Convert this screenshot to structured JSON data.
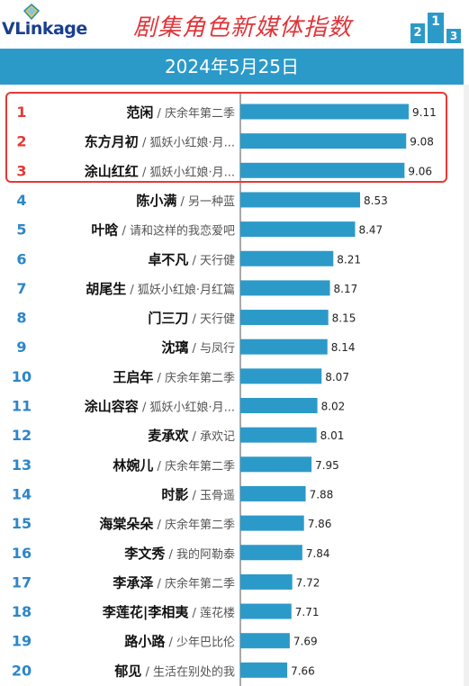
{
  "header": {
    "logo_text": "VLinkage",
    "title": "剧集角色新媒体指数",
    "date": "2024年5月25日"
  },
  "colors": {
    "bar": "#2c9ac9",
    "highlight_rank": "#e53935",
    "rank": "#2c86c9",
    "title": "#e0353a"
  },
  "icons": {
    "logo": "diamond-icon",
    "podium": "podium-icon"
  },
  "chart_data": {
    "type": "bar",
    "orientation": "horizontal",
    "title": "剧集角色新媒体指数",
    "highlight_top": 3,
    "ranks": [
      "1",
      "2",
      "3",
      "4",
      "5",
      "6",
      "7",
      "8",
      "9",
      "10",
      "11",
      "12",
      "13",
      "14",
      "15",
      "16",
      "17",
      "18",
      "19",
      "20"
    ],
    "characters": [
      "范闲",
      "东方月初",
      "涂山红红",
      "陈小满",
      "叶晗",
      "卓不凡",
      "胡尾生",
      "门三刀",
      "沈璃",
      "王启年",
      "涂山容容",
      "麦承欢",
      "林婉儿",
      "时影",
      "海棠朵朵",
      "李文秀",
      "李承泽",
      "李莲花|李相夷",
      "路小路",
      "郁见"
    ],
    "dramas": [
      "庆余年第二季",
      "狐妖小红娘·月...",
      "狐妖小红娘·月...",
      "另一种蓝",
      "请和这样的我恋爱吧",
      "天行健",
      "狐妖小红娘·月红篇",
      "天行健",
      "与凤行",
      "庆余年第二季",
      "狐妖小红娘·月...",
      "承欢记",
      "庆余年第二季",
      "玉骨遥",
      "庆余年第二季",
      "我的阿勒泰",
      "庆余年第二季",
      "莲花楼",
      "少年巴比伦",
      "生活在别处的我"
    ],
    "values": [
      9.11,
      9.08,
      9.06,
      8.53,
      8.47,
      8.21,
      8.17,
      8.15,
      8.14,
      8.07,
      8.02,
      8.01,
      7.95,
      7.88,
      7.86,
      7.84,
      7.72,
      7.71,
      7.69,
      7.66
    ],
    "value_labels": [
      "9.11",
      "9.08",
      "9.06",
      "8.53",
      "8.47",
      "8.21",
      "8.17",
      "8.15",
      "8.14",
      "8.07",
      "8.02",
      "8.01",
      "7.95",
      "7.88",
      "7.86",
      "7.84",
      "7.72",
      "7.71",
      "7.69",
      "7.66"
    ]
  }
}
